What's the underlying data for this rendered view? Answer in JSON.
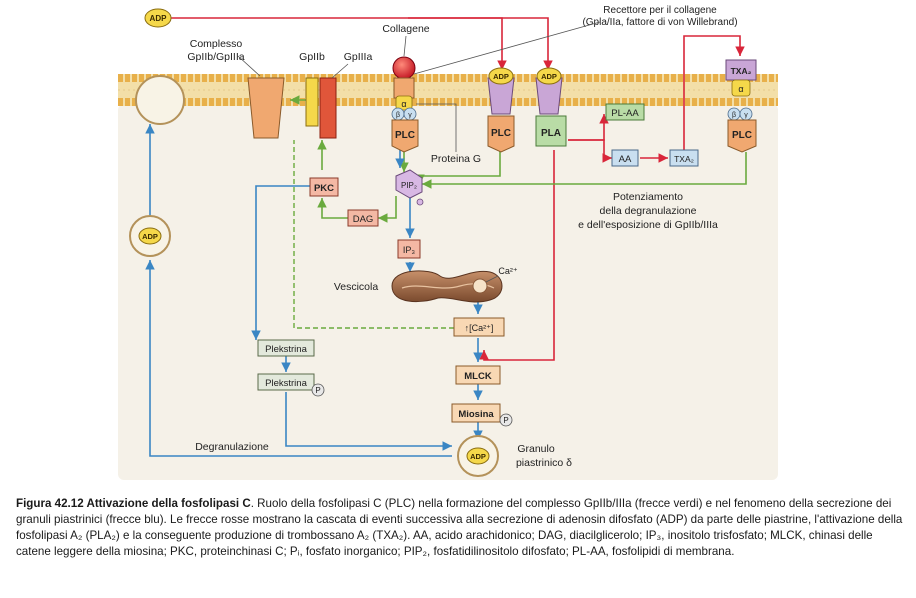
{
  "labels": {
    "adp": "ADP",
    "collagene": "Collagene",
    "recettore_line1": "Recettore per il collagene",
    "recettore_line2": "(Gpla/IIa, fattore di von Willebrand)",
    "complesso_line1": "Complesso",
    "complesso_line2": "GpIIb/GpIIIa",
    "gpiib": "GpIIb",
    "gpiiia": "GpIIIa",
    "alpha": "α",
    "beta": "β",
    "gamma": "γ",
    "plc": "PLC",
    "pla": "PLA",
    "pl_aa": "PL-AA",
    "aa": "AA",
    "txa2": "TXA₂",
    "proteina_g": "Proteina G",
    "pkc": "PKC",
    "pip2": "PIP₂",
    "dag": "DAG",
    "ip3": "IP₃",
    "vescicola": "Vescicola",
    "ca": "Ca²⁺",
    "ca_conc": "↑[Ca²⁺]",
    "potenziamento_line1": "Potenziamento",
    "potenziamento_line2": "della degranulazione",
    "potenziamento_line3": "e dell'esposizione di GpIIb/IIIa",
    "plekstrina": "Plekstrina",
    "plekstrina_p": "Plekstrina",
    "p": "P",
    "mlck": "MLCK",
    "miosina": "Miosina",
    "degranulazione": "Degranulazione",
    "granulo_line1": "Granulo",
    "granulo_line2": "piastrinico δ"
  },
  "caption": {
    "head": "Figura 42.12   Attivazione della fosfolipasi C",
    "body": ". Ruolo della fosfolipasi C (PLC) nella formazione del complesso GpIIb/IIIa (frecce verdi) e nel fenomeno della secrezione dei granuli piastrinici (frecce blu). Le frecce rosse mostrano la cascata di eventi successiva alla secrezione di adenosin difosfato (ADP) da parte delle piastrine, l'attivazione della fosfolipasi A₂ (PLA₂) e la conseguente produzione di trombossano A₂ (TXA₂). AA, acido arachidonico; DAG, diacilglicerolo; IP₃, inositolo trisfosfato; MLCK, chinasi delle catene leggere della miosina; PKC, proteinchinasi C; Pᵢ, fosfato inorganico; PIP₂, fosfatidilinositolo difosfato; PL-AA, fosfolipidi di membrana."
  },
  "colors": {
    "membrane_head": "#e8b04a",
    "membrane_tail": "#f3dfa8",
    "orange_protein": "#f0a870",
    "purple_protein": "#c9a6d6",
    "yellow_subunit": "#f5d84a",
    "green_box": "#b9dca6",
    "blue_box": "#c9dff0",
    "red_arrow": "#d9263a",
    "green_arrow": "#6aaa3e",
    "blue_arrow": "#3a86c4"
  }
}
